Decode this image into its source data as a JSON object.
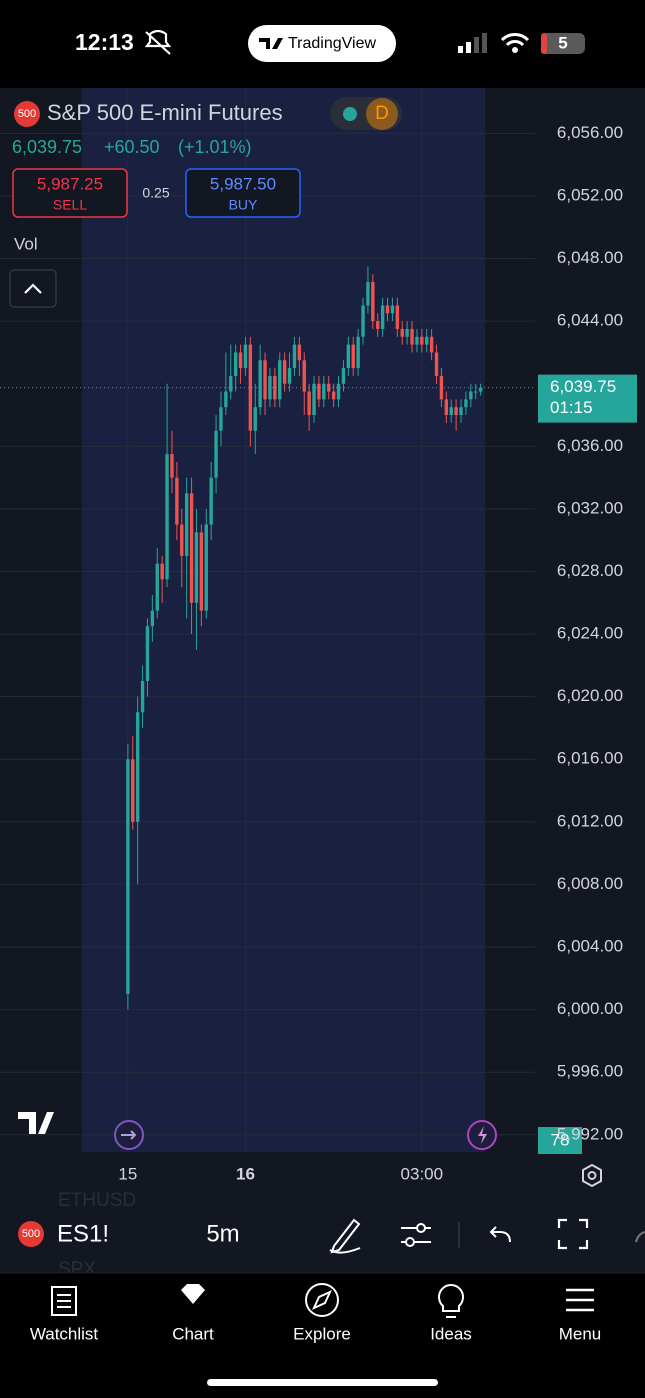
{
  "status_bar": {
    "time": "12:13",
    "app": "TradingView",
    "battery": "5"
  },
  "symbol": {
    "badge": "500",
    "name": "S&P 500 E-mini Futures",
    "interval_badge": "D",
    "last": "6,039.75",
    "change": "+60.50",
    "change_pct": "(+1.01%)"
  },
  "trade": {
    "sell_price": "5,987.25",
    "sell": "SELL",
    "spread": "0.25",
    "buy_price": "5,987.50",
    "buy": "BUY"
  },
  "volume": {
    "label": "Vol",
    "last": "78"
  },
  "toolbar": {
    "badge": "500",
    "symbol": "ES1!",
    "interval": "5m",
    "behind": [
      "ETHUSD",
      "SPX"
    ]
  },
  "tabs": [
    "Watchlist",
    "Chart",
    "Explore",
    "Ideas",
    "Menu"
  ],
  "chart_data": {
    "type": "candlestick",
    "up_color": "#26a69a",
    "down_color": "#ef5350",
    "grid": true,
    "xlim": [
      -26.1,
      83.1
    ],
    "ylim": [
      5990.9,
      6058.9
    ],
    "xticks": [
      {
        "value": 0,
        "label": "15"
      },
      {
        "value": 24,
        "label": "16"
      },
      {
        "value": 60,
        "label": "03:00"
      }
    ],
    "yticks": [
      {
        "value": 6056,
        "label": "6,056.00"
      },
      {
        "value": 6052,
        "label": "6,052.00"
      },
      {
        "value": 6048,
        "label": "6,048.00"
      },
      {
        "value": 6044,
        "label": "6,044.00"
      },
      {
        "value": 6036,
        "label": "6,036.00"
      },
      {
        "value": 6032,
        "label": "6,032.00"
      },
      {
        "value": 6028,
        "label": "6,028.00"
      },
      {
        "value": 6024,
        "label": "6,024.00"
      },
      {
        "value": 6020,
        "label": "6,020.00"
      },
      {
        "value": 6016,
        "label": "6,016.00"
      },
      {
        "value": 6012,
        "label": "6,012.00"
      },
      {
        "value": 6008,
        "label": "6,008.00"
      },
      {
        "value": 6004,
        "label": "6,004.00"
      },
      {
        "value": 6000,
        "label": "6,000.00"
      },
      {
        "value": 5996,
        "label": "5,996.00"
      },
      {
        "value": 5992,
        "label": "5,992.00"
      }
    ],
    "price_line": {
      "value": 6039.75,
      "label": "6,039.75",
      "countdown": "01:15"
    },
    "x": [
      0,
      1,
      2,
      3,
      4,
      5,
      6,
      7,
      8,
      9,
      10,
      11,
      12,
      13,
      14,
      15,
      16,
      17,
      18,
      19,
      20,
      21,
      22,
      23,
      24,
      25,
      26,
      27,
      28,
      29,
      30,
      31,
      32,
      33,
      34,
      35,
      36,
      37,
      38,
      39,
      40,
      41,
      42,
      43,
      44,
      45,
      46,
      47,
      48,
      49,
      50,
      51,
      52,
      53,
      54,
      55,
      56,
      57,
      58,
      59,
      60,
      61,
      62,
      63,
      64,
      65,
      66,
      67,
      68,
      69,
      70,
      71,
      72
    ],
    "open": [
      6001,
      6016,
      6012,
      6019,
      6021,
      6024.5,
      6025.5,
      6028.5,
      6027.5,
      6035.5,
      6034,
      6031,
      6029,
      6033,
      6026,
      6030.5,
      6025.5,
      6031,
      6034,
      6037,
      6038.5,
      6039.5,
      6040.5,
      6042,
      6041,
      6042.5,
      6037,
      6038.5,
      6041.5,
      6039,
      6040.5,
      6039,
      6041.5,
      6040,
      6041,
      6042.5,
      6041.5,
      6039.5,
      6038,
      6040,
      6039,
      6040,
      6039.5,
      6039,
      6040,
      6041,
      6042.5,
      6041,
      6043,
      6045,
      6046.5,
      6044,
      6043.5,
      6045,
      6044.5,
      6045,
      6043.5,
      6043,
      6043.5,
      6042.5,
      6043,
      6042.5,
      6043,
      6042,
      6040.5,
      6039,
      6038,
      6038.5,
      6038,
      6038.5,
      6039,
      6039.5,
      6039.5
    ],
    "high": [
      6017,
      6017.5,
      6020,
      6022,
      6025,
      6026.5,
      6029.5,
      6029,
      6040,
      6037,
      6035,
      6032,
      6034,
      6034,
      6032,
      6031,
      6032,
      6035,
      6038,
      6039.5,
      6042,
      6042.5,
      6042.5,
      6042.5,
      6043,
      6043,
      6040,
      6042.5,
      6042,
      6041,
      6041,
      6042,
      6042,
      6042,
      6043,
      6043,
      6042,
      6040,
      6040.5,
      6040.5,
      6040.5,
      6040.5,
      6040,
      6040.5,
      6041.5,
      6043,
      6043,
      6043.5,
      6045.5,
      6047.5,
      6047,
      6044.5,
      6045.5,
      6045.5,
      6045.5,
      6045.5,
      6044,
      6044,
      6044,
      6043.5,
      6043.5,
      6043.5,
      6043.5,
      6042.5,
      6041,
      6039.5,
      6039,
      6039,
      6039,
      6039.5,
      6040,
      6040,
      6040
    ],
    "low": [
      6000,
      6011.5,
      6008,
      6018,
      6020,
      6023.5,
      6025,
      6026,
      6027,
      6033,
      6030,
      6027,
      6025,
      6024,
      6023,
      6024.5,
      6025,
      6030,
      6033,
      6036,
      6038,
      6039,
      6039.5,
      6040,
      6040.5,
      6036,
      6035.5,
      6038,
      6038,
      6038.5,
      6038.5,
      6038.5,
      6039.5,
      6039.5,
      6040.5,
      6040.5,
      6038,
      6037,
      6037.5,
      6038.5,
      6038.5,
      6039,
      6038.5,
      6038.5,
      6039.5,
      6040.5,
      6040.5,
      6040.5,
      6042.5,
      6044.5,
      6043.5,
      6043,
      6043,
      6044,
      6044,
      6043,
      6042.5,
      6042.5,
      6042,
      6042,
      6042,
      6042,
      6041.5,
      6040,
      6038.5,
      6037.5,
      6037.5,
      6037,
      6037.5,
      6038,
      6038.5,
      6039,
      6039.25
    ],
    "close": [
      6016,
      6012,
      6019,
      6021,
      6024.5,
      6025.5,
      6028.5,
      6027.5,
      6035.5,
      6034,
      6031,
      6029,
      6033,
      6026,
      6030.5,
      6025.5,
      6031,
      6034,
      6037,
      6038.5,
      6039.5,
      6040.5,
      6042,
      6041,
      6042.5,
      6037,
      6038.5,
      6041.5,
      6039,
      6040.5,
      6039,
      6041.5,
      6040,
      6041,
      6042.5,
      6041.5,
      6039.5,
      6038,
      6040,
      6039,
      6040,
      6039.5,
      6039,
      6040,
      6041,
      6042.5,
      6041,
      6043,
      6045,
      6046.5,
      6044,
      6043.5,
      6045,
      6044.5,
      6045,
      6043.5,
      6043,
      6043.5,
      6042.5,
      6043,
      6042.5,
      6043,
      6042,
      6040.5,
      6039,
      6038,
      6038.5,
      6038,
      6038.5,
      6039,
      6039.5,
      6039.5,
      6039.75
    ]
  }
}
